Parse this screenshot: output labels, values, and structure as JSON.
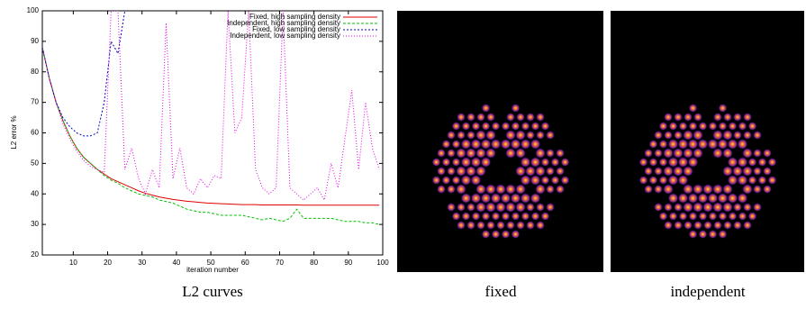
{
  "chart_data": {
    "type": "line",
    "x_label": "iteration number",
    "y_label": "L2 error %",
    "x": [
      1,
      3,
      5,
      7,
      9,
      11,
      13,
      15,
      17,
      19,
      21,
      23,
      25,
      27,
      29,
      31,
      33,
      35,
      37,
      39,
      41,
      43,
      45,
      47,
      49,
      51,
      53,
      55,
      57,
      59,
      61,
      63,
      65,
      67,
      69,
      71,
      73,
      75,
      77,
      79,
      81,
      83,
      85,
      87,
      89,
      91,
      93,
      95,
      97,
      99
    ],
    "series": [
      {
        "name": "Fixed, high sampling density",
        "color": "#e00000",
        "dash": "none",
        "values": [
          88,
          78,
          70,
          64,
          59,
          55,
          52,
          50,
          48,
          46.5,
          45,
          44,
          43,
          42,
          41,
          40.2,
          39.6,
          39,
          38.6,
          38.2,
          37.9,
          37.6,
          37.4,
          37.2,
          37,
          36.9,
          36.8,
          36.7,
          36.6,
          36.5,
          36.5,
          36.5,
          36.4,
          36.4,
          36.4,
          36.4,
          36.4,
          36.4,
          36.3,
          36.3,
          36.3,
          36.3,
          36.3,
          36.3,
          36.3,
          36.3,
          36.3,
          36.3,
          36.3,
          36.3
        ]
      },
      {
        "name": "Independent, high sampling density",
        "color": "#00c000",
        "dash": "3,2",
        "values": [
          88,
          78,
          70,
          64,
          59,
          55,
          52,
          50,
          48,
          46,
          44.5,
          43.5,
          42,
          41,
          40,
          39.5,
          39,
          38,
          37.5,
          37,
          36,
          35,
          34.5,
          34,
          34,
          33.5,
          33,
          33,
          33,
          33,
          32.5,
          32,
          31.5,
          32,
          31.5,
          31,
          32,
          35,
          32,
          32,
          32,
          32,
          32,
          31.5,
          31,
          31,
          31,
          30.5,
          30.5,
          30
        ]
      },
      {
        "name": "Fixed, low sampling density",
        "color": "#0000c0",
        "dash": "2,2",
        "values": [
          88,
          78,
          70,
          65,
          62,
          60,
          59,
          59,
          60,
          70,
          90,
          86,
          100,
          null,
          null,
          null,
          null,
          null,
          null,
          null,
          null,
          null,
          null,
          null,
          null,
          null,
          null,
          null,
          null,
          null,
          null,
          null,
          null,
          null,
          null,
          null,
          null,
          null,
          null,
          null,
          null,
          null,
          null,
          null,
          null,
          null,
          null,
          null,
          null,
          null
        ]
      },
      {
        "name": "Independent, low sampling density",
        "color": "#e000e0",
        "dash": "1,2",
        "values": [
          88,
          78,
          70,
          63,
          58,
          54,
          51,
          49,
          48,
          47,
          100,
          100,
          48,
          55,
          45,
          40,
          48,
          42,
          96,
          45,
          55,
          42,
          40,
          45,
          42,
          46,
          45,
          100,
          60,
          65,
          100,
          48,
          42,
          40,
          42,
          100,
          42,
          40,
          38,
          40,
          42,
          38,
          50,
          42,
          58,
          74,
          48,
          70,
          55,
          48
        ]
      }
    ],
    "xlim": [
      1,
      100
    ],
    "xticks": [
      10,
      20,
      30,
      40,
      50,
      60,
      70,
      80,
      90,
      100
    ],
    "ylim": [
      20,
      100
    ],
    "yticks": [
      20,
      30,
      40,
      50,
      60,
      70,
      80,
      90,
      100
    ],
    "legend": "top-right"
  },
  "captions": [
    "L2 curves",
    "fixed",
    "independent"
  ]
}
